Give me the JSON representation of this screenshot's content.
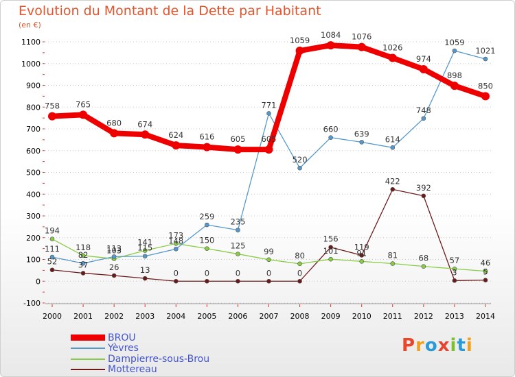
{
  "title": "Evolution du Montant de la Dette par Habitant",
  "unit_label": "(en €)",
  "logo_text": "Proxiti",
  "colors": {
    "title": "#e0552c",
    "legend_text": "#4455cc",
    "grid": "#c8c8c8",
    "logo": [
      "#e8452c",
      "#f0a020",
      "#2a9ad8",
      "#e8452c",
      "#7cbf2f",
      "#2a9ad8",
      "#f0a020"
    ]
  },
  "chart_data": {
    "type": "line",
    "title": "Evolution du Montant de la Dette par Habitant",
    "ylabel": "(en €)",
    "xlabel": "",
    "x": [
      "2000",
      "2001",
      "2002",
      "2003",
      "2004",
      "2005",
      "2006",
      "2007",
      "2008",
      "2009",
      "2010",
      "2011",
      "2012",
      "2013",
      "2014"
    ],
    "ylim": [
      -100,
      1100
    ],
    "yticks": [
      -100,
      0,
      100,
      200,
      300,
      400,
      500,
      600,
      700,
      800,
      900,
      1000,
      1100
    ],
    "grid": "horizontal-dotted",
    "legend_position": "bottom-left",
    "series": [
      {
        "name": "BROU",
        "color": "#ee0000",
        "values": [
          758,
          765,
          680,
          674,
          624,
          616,
          605,
          605,
          1059,
          1084,
          1076,
          1026,
          974,
          898,
          850
        ]
      },
      {
        "name": "Yèvres",
        "color": "#5599cc",
        "values": [
          111,
          82,
          113,
          115,
          148,
          259,
          235,
          771,
          520,
          660,
          639,
          614,
          748,
          1059,
          1021
        ]
      },
      {
        "name": "Dampierre-sous-Brou",
        "color": "#88cc44",
        "values": [
          194,
          118,
          103,
          141,
          173,
          150,
          125,
          99,
          80,
          101,
          91,
          81,
          68,
          57,
          46
        ]
      },
      {
        "name": "Mottereau",
        "color": "#6b1a1a",
        "values": [
          52,
          37,
          26,
          13,
          0,
          0,
          0,
          0,
          0,
          156,
          119,
          422,
          392,
          3,
          5
        ]
      }
    ]
  }
}
